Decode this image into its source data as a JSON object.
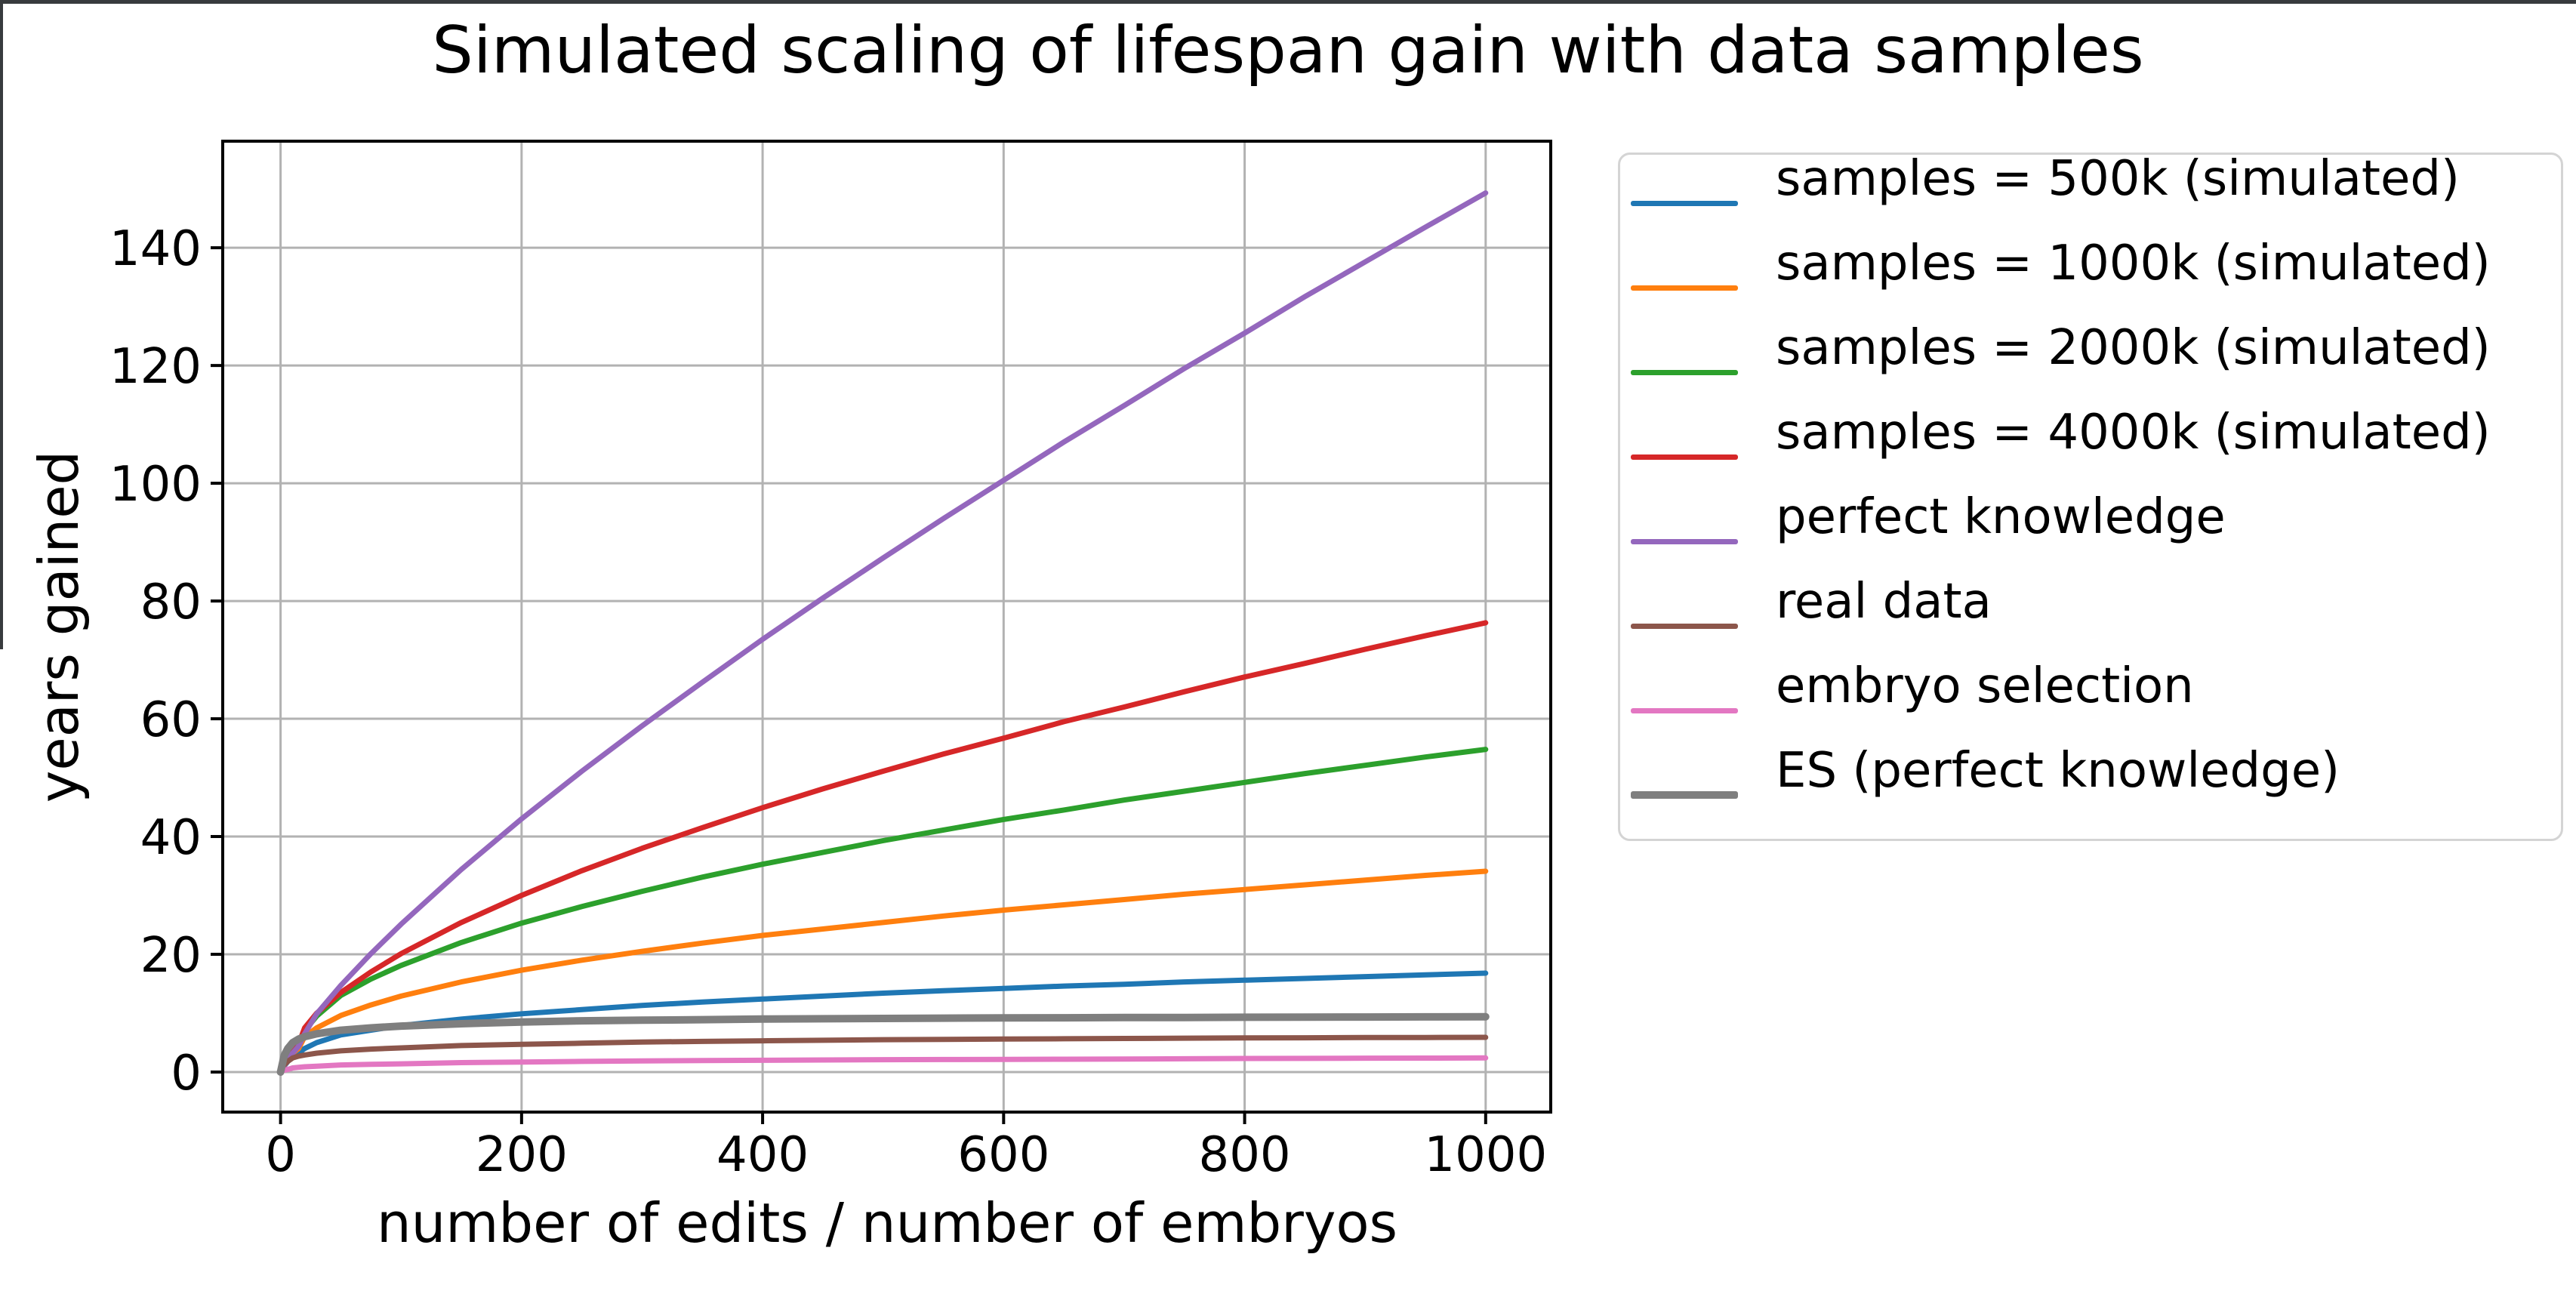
{
  "window": {
    "edge_color": "#383b3e"
  },
  "colors": {
    "background": "#ffffff",
    "grid": "#b2b2b2",
    "spine": "#000000",
    "tick_label": "#000000",
    "legend_border": "#d4d4d4"
  },
  "chart_data": {
    "type": "line",
    "title": "Simulated scaling of lifespan gain with data samples",
    "xlabel": "number of edits / number of embryos",
    "ylabel": "years gained",
    "grid": true,
    "legend_position": "outside upper right",
    "x_ticks": [
      0,
      200,
      400,
      600,
      800,
      1000
    ],
    "y_ticks": [
      0,
      20,
      40,
      60,
      80,
      100,
      120,
      140
    ],
    "x_view": [
      -48,
      1054
    ],
    "y_view": [
      -6.8,
      158.1
    ],
    "x": [
      0,
      3,
      6,
      10,
      15,
      20,
      30,
      50,
      75,
      100,
      150,
      200,
      250,
      300,
      350,
      400,
      450,
      500,
      550,
      600,
      650,
      700,
      750,
      800,
      850,
      900,
      950,
      1000
    ],
    "series": [
      {
        "name": "samples = 500k (simulated)",
        "color": "#1f77b4",
        "line_width": 7,
        "values": [
          0,
          1.0,
          1.8,
          2.6,
          3.2,
          4.0,
          5.0,
          6.3,
          7.1,
          7.9,
          9.0,
          9.9,
          10.6,
          11.3,
          11.9,
          12.4,
          12.9,
          13.4,
          13.8,
          14.2,
          14.6,
          14.9,
          15.3,
          15.6,
          15.9,
          16.2,
          16.5,
          16.8
        ]
      },
      {
        "name": "samples = 1000k (simulated)",
        "color": "#ff7f0e",
        "line_width": 7,
        "values": [
          0,
          1.1,
          2.0,
          3.2,
          4.0,
          6.0,
          7.5,
          9.6,
          11.4,
          12.9,
          15.3,
          17.3,
          19.0,
          20.5,
          21.9,
          23.2,
          24.3,
          25.4,
          26.5,
          27.5,
          28.4,
          29.3,
          30.2,
          31.0,
          31.8,
          32.6,
          33.4,
          34.1
        ]
      },
      {
        "name": "samples = 2000k (simulated)",
        "color": "#2ca02c",
        "line_width": 7,
        "values": [
          0,
          1.2,
          2.2,
          3.6,
          4.6,
          7.0,
          9.5,
          13.0,
          15.8,
          18.1,
          22.0,
          25.3,
          28.1,
          30.7,
          33.1,
          35.3,
          37.3,
          39.3,
          41.1,
          42.9,
          44.5,
          46.2,
          47.7,
          49.2,
          50.7,
          52.1,
          53.5,
          54.8
        ]
      },
      {
        "name": "samples = 4000k (simulated)",
        "color": "#d62728",
        "line_width": 7,
        "values": [
          0,
          1.3,
          2.3,
          3.6,
          4.8,
          7.5,
          10.0,
          13.5,
          17.0,
          20.1,
          25.4,
          30.0,
          34.2,
          38.0,
          41.5,
          44.9,
          48.1,
          51.1,
          54.0,
          56.7,
          59.5,
          62.0,
          64.6,
          67.1,
          69.4,
          71.8,
          74.1,
          76.3
        ]
      },
      {
        "name": "perfect knowledge",
        "color": "#9467bd",
        "line_width": 7,
        "values": [
          0,
          1.0,
          2.0,
          3.2,
          4.4,
          6.5,
          9.9,
          14.7,
          20.1,
          25.1,
          34.4,
          43.0,
          51.1,
          58.8,
          66.2,
          73.5,
          80.5,
          87.3,
          94.0,
          100.5,
          107.0,
          113.2,
          119.5,
          125.5,
          131.7,
          137.6,
          143.5,
          149.3
        ]
      },
      {
        "name": "real data",
        "color": "#8c564b",
        "line_width": 7,
        "values": [
          0,
          1.2,
          1.8,
          2.4,
          2.7,
          2.9,
          3.2,
          3.6,
          3.9,
          4.1,
          4.5,
          4.7,
          4.9,
          5.1,
          5.2,
          5.3,
          5.4,
          5.5,
          5.55,
          5.6,
          5.65,
          5.7,
          5.75,
          5.8,
          5.82,
          5.85,
          5.87,
          5.9
        ]
      },
      {
        "name": "embryo selection",
        "color": "#e377c2",
        "line_width": 7,
        "values": [
          0,
          0.3,
          0.45,
          0.7,
          0.8,
          0.9,
          1.0,
          1.2,
          1.3,
          1.4,
          1.6,
          1.7,
          1.8,
          1.9,
          1.95,
          2.0,
          2.05,
          2.1,
          2.12,
          2.15,
          2.17,
          2.2,
          2.25,
          2.3,
          2.32,
          2.35,
          2.37,
          2.4
        ]
      },
      {
        "name": "ES (perfect knowledge)",
        "color": "#7f7f7f",
        "line_width": 10,
        "values": [
          0,
          2.8,
          4.0,
          5.0,
          5.6,
          6.0,
          6.5,
          7.1,
          7.5,
          7.8,
          8.2,
          8.5,
          8.7,
          8.8,
          8.9,
          9.0,
          9.05,
          9.1,
          9.15,
          9.2,
          9.22,
          9.25,
          9.27,
          9.3,
          9.32,
          9.35,
          9.37,
          9.4
        ]
      }
    ]
  }
}
